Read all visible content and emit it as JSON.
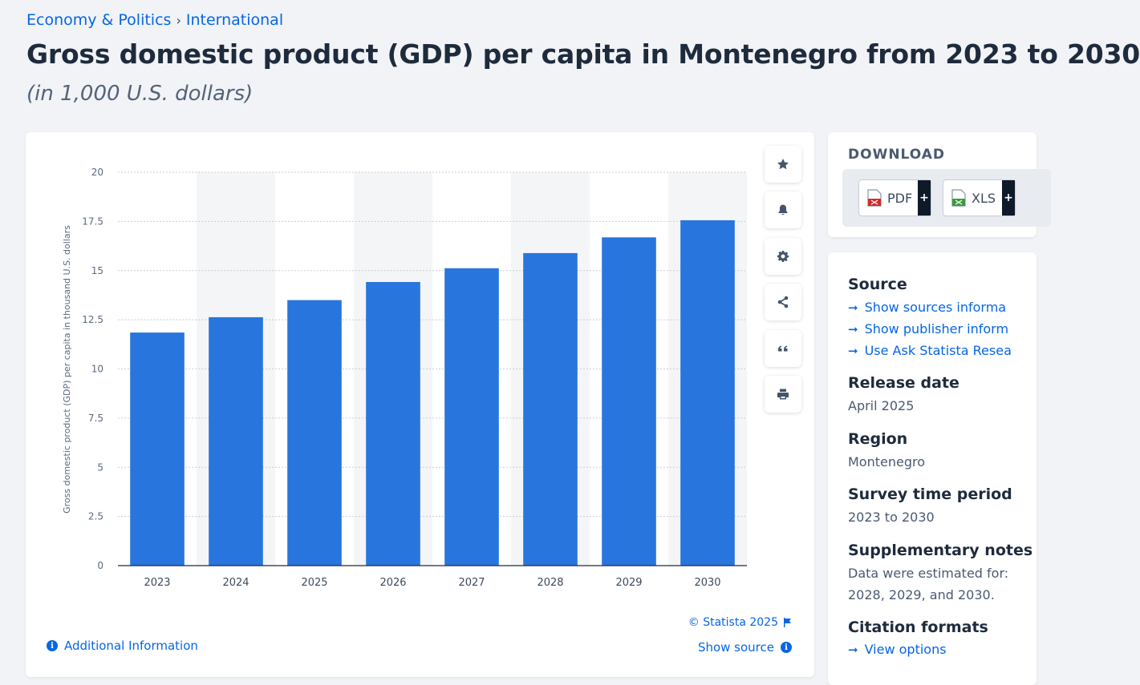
{
  "breadcrumb": {
    "items": [
      "Economy & Politics",
      "International"
    ],
    "separator": "›"
  },
  "title": "Gross domestic product (GDP) per capita in Montenegro from 2023 to 2030",
  "subtitle": "(in 1,000 U.S. dollars)",
  "toolbar": {
    "icons": [
      "star-icon",
      "bell-icon",
      "gear-icon",
      "share-icon",
      "quote-icon",
      "print-icon"
    ]
  },
  "chart_data": {
    "type": "bar",
    "categories": [
      "2023",
      "2024",
      "2025",
      "2026",
      "2027",
      "2028",
      "2029",
      "2030"
    ],
    "values": [
      11.85,
      12.63,
      13.5,
      14.42,
      15.12,
      15.89,
      16.69,
      17.56
    ],
    "title": "",
    "xlabel": "",
    "ylabel": "Gross domestic product (GDP) per capita in thousand U.S. dollars",
    "ylim": [
      0,
      20
    ],
    "yticks": [
      "0",
      "2.5",
      "5",
      "7.5",
      "10",
      "12.5",
      "15",
      "17.5",
      "20"
    ],
    "grid": true,
    "bar_color": "#2876dd"
  },
  "footer": {
    "copyright": "© Statista 2025",
    "additional_info": "Additional Information",
    "show_source": "Show source"
  },
  "download": {
    "title": "DOWNLOAD",
    "pdf_label": "PDF",
    "xls_label": "XLS",
    "plus": "+"
  },
  "info": {
    "source_title": "Source",
    "source_links": [
      "Show sources informa",
      "Show publisher inform",
      "Use Ask Statista Resea"
    ],
    "release_title": "Release date",
    "release_value": "April 2025",
    "region_title": "Region",
    "region_value": "Montenegro",
    "survey_title": "Survey time period",
    "survey_value": "2023 to 2030",
    "notes_title": "Supplementary notes",
    "notes_line1": "Data were estimated for:",
    "notes_line2": "2028, 2029, and 2030.",
    "citation_title": "Citation formats",
    "citation_link": "View options"
  },
  "colors": {
    "accent": "#0666e5",
    "bar": "#2876dd",
    "heading": "#1e2b3c"
  }
}
